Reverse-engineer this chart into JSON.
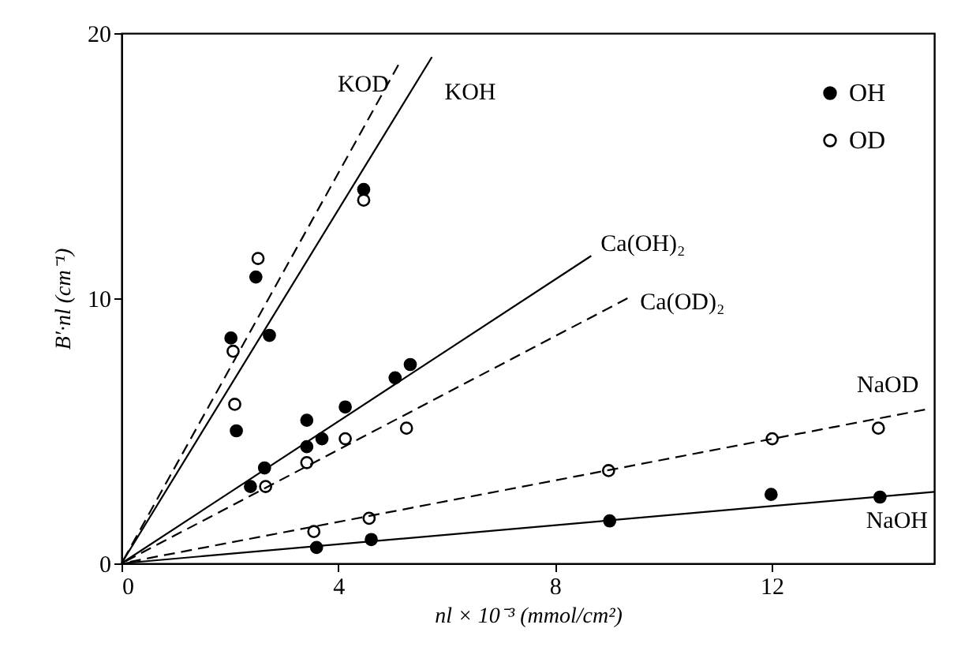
{
  "chart_data": {
    "type": "scatter",
    "xlabel": "nl × 10⁻³ (mmol/cm²)",
    "ylabel": "B′·nl (cm⁻¹)",
    "xlim": [
      0,
      15
    ],
    "ylim": [
      0,
      20
    ],
    "xticks": [
      0,
      4,
      8,
      12
    ],
    "yticks": [
      0,
      10,
      20
    ],
    "grid": false,
    "legend": "top right",
    "series": [
      {
        "name": "OH",
        "type": "scatter",
        "marker": "circle",
        "color": "#000000",
        "x": [
          2.02,
          2.48,
          2.73,
          2.12,
          4.47,
          2.38,
          2.64,
          3.42,
          3.42,
          3.7,
          4.13,
          5.05,
          5.33,
          3.6,
          4.61,
          9.01,
          11.99,
          14.0
        ],
        "values": [
          8.5,
          10.8,
          8.6,
          5.0,
          14.1,
          2.9,
          3.6,
          4.4,
          5.4,
          4.7,
          5.9,
          7.0,
          7.5,
          0.6,
          0.9,
          1.6,
          2.6,
          2.5
        ]
      },
      {
        "name": "OD",
        "type": "scatter",
        "marker": "circle",
        "color": "#ffffff",
        "x": [
          2.52,
          2.06,
          2.09,
          4.47,
          2.66,
          3.42,
          4.13,
          5.26,
          3.55,
          4.57,
          8.99,
          12.01,
          13.97
        ],
        "values": [
          11.5,
          8.0,
          6.0,
          13.7,
          2.9,
          3.8,
          4.7,
          5.1,
          1.2,
          1.7,
          3.5,
          4.7,
          5.1
        ]
      },
      {
        "type": "line",
        "line_style": "solid",
        "color": "#000000",
        "x": [
          0,
          5.73
        ],
        "values": [
          0,
          19.1
        ]
      },
      {
        "type": "line",
        "line_style": "dashed",
        "color": "#000000",
        "x": [
          0,
          5.11
        ],
        "values": [
          0,
          18.8
        ]
      },
      {
        "type": "line",
        "line_style": "solid",
        "color": "#000000",
        "x": [
          0,
          8.67
        ],
        "values": [
          0,
          11.6
        ]
      },
      {
        "type": "line",
        "line_style": "dashed",
        "color": "#000000",
        "x": [
          0,
          9.34
        ],
        "values": [
          0,
          10.0
        ]
      },
      {
        "type": "line",
        "line_style": "dashed",
        "color": "#000000",
        "x": [
          0,
          14.83
        ],
        "values": [
          0,
          5.8
        ]
      },
      {
        "type": "line",
        "line_style": "solid",
        "color": "#000000",
        "x": [
          0,
          15.0
        ],
        "values": [
          0,
          2.7
        ]
      }
    ],
    "annotations": [
      {
        "text": "KOD",
        "x": 5.11,
        "y": 18.8
      },
      {
        "text": "KOH",
        "x": 5.73,
        "y": 19.1
      },
      {
        "text": "Ca(OH)₂",
        "x": 8.67,
        "y": 11.6
      },
      {
        "text": "Ca(OD)₂",
        "x": 9.34,
        "y": 10.0
      },
      {
        "text": "NaOD",
        "x": 14.83,
        "y": 5.8
      },
      {
        "text": "NaOH",
        "x": 15.0,
        "y": 2.7
      }
    ]
  }
}
